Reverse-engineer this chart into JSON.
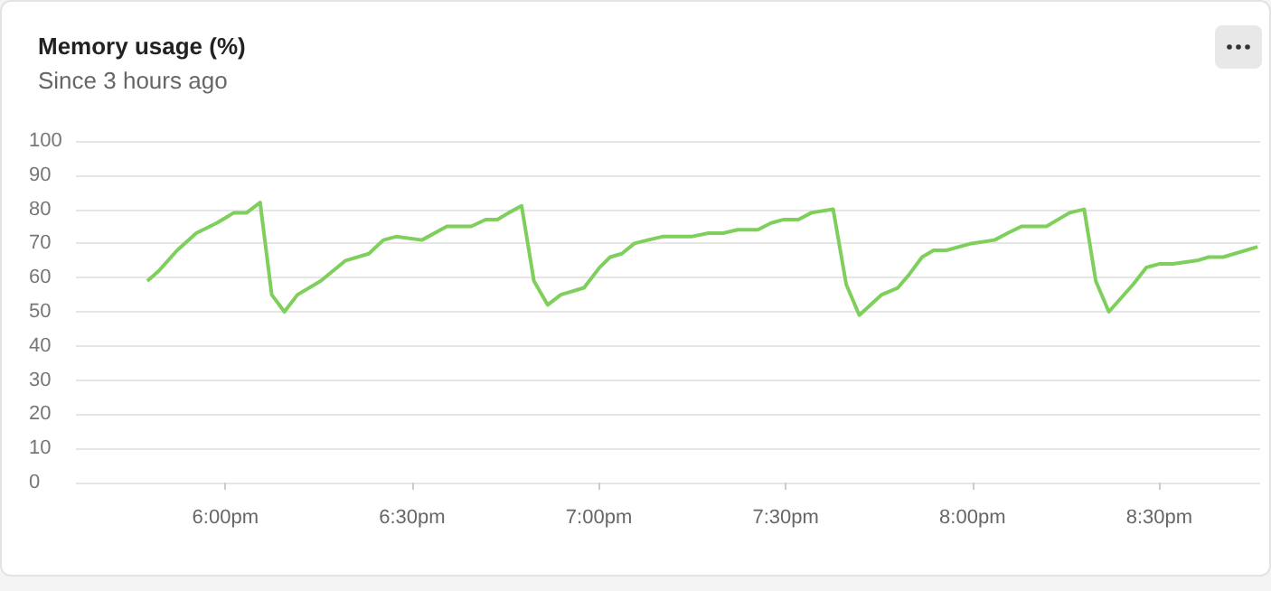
{
  "chart_data": {
    "type": "line",
    "title": "Memory usage (%)",
    "subtitle": "Since 3 hours ago",
    "x": [
      17.791,
      17.822,
      17.871,
      17.922,
      17.977,
      18.023,
      18.057,
      18.093,
      18.124,
      18.158,
      18.193,
      18.255,
      18.322,
      18.384,
      18.423,
      18.457,
      18.526,
      18.593,
      18.658,
      18.697,
      18.728,
      18.759,
      18.793,
      18.826,
      18.863,
      18.898,
      18.96,
      19.002,
      19.03,
      19.061,
      19.095,
      19.131,
      19.17,
      19.247,
      19.293,
      19.332,
      19.371,
      19.425,
      19.461,
      19.495,
      19.534,
      19.569,
      19.627,
      19.662,
      19.697,
      19.757,
      19.8,
      19.831,
      19.865,
      19.896,
      19.93,
      19.997,
      20.059,
      20.094,
      20.131,
      20.167,
      20.198,
      20.26,
      20.299,
      20.33,
      20.365,
      20.43,
      20.466,
      20.5,
      20.536,
      20.601,
      20.632,
      20.671,
      20.763
    ],
    "series": [
      {
        "color": "#7ecf5b",
        "values": [
          59,
          62,
          68,
          73,
          76,
          79,
          79,
          82,
          55,
          50,
          55,
          59,
          65,
          67,
          71,
          72,
          71,
          75,
          75,
          77,
          77,
          79,
          81,
          59,
          52,
          55,
          57,
          63,
          66,
          67,
          70,
          71,
          72,
          72,
          73,
          73,
          74,
          74,
          76,
          77,
          77,
          79,
          80,
          58,
          49,
          55,
          57,
          61,
          66,
          68,
          68,
          70,
          71,
          73,
          75,
          75,
          75,
          79,
          80,
          59,
          50,
          58,
          63,
          64,
          64,
          65,
          66,
          66,
          69
        ]
      }
    ],
    "xlim": [
      17.6,
      20.77
    ],
    "xticks": [
      {
        "value": 18,
        "label": "6:00pm"
      },
      {
        "value": 18.5,
        "label": "6:30pm"
      },
      {
        "value": 19,
        "label": "7:00pm"
      },
      {
        "value": 19.5,
        "label": "7:30pm"
      },
      {
        "value": 20,
        "label": "8:00pm"
      },
      {
        "value": 20.5,
        "label": "8:30pm"
      }
    ],
    "ylim": [
      0,
      100
    ],
    "yticks": [
      0,
      10,
      20,
      30,
      40,
      50,
      60,
      70,
      80,
      90,
      100
    ],
    "grid": "y",
    "marker": "none",
    "line_style": "solid"
  }
}
